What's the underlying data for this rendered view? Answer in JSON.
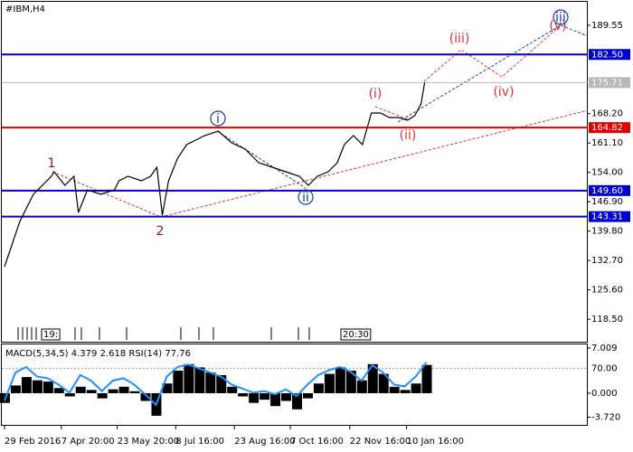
{
  "chart_data": [
    {
      "type": "line",
      "title": "#IBM,H4",
      "color": "#000000",
      "x": [
        3,
        20,
        35,
        55,
        58,
        70,
        80,
        85,
        95,
        110,
        125,
        130,
        140,
        155,
        165,
        172,
        178,
        185,
        195,
        205,
        215,
        225,
        240,
        255,
        270,
        285,
        300,
        315,
        330,
        340,
        350,
        362,
        372,
        380,
        390,
        400,
        410,
        420,
        430,
        440,
        450,
        458,
        465,
        469
      ],
      "values": [
        131.21,
        142.14,
        148.69,
        153.06,
        154.15,
        150.88,
        153.06,
        144.32,
        149.78,
        148.69,
        149.78,
        151.97,
        153.06,
        151.97,
        153.06,
        155.25,
        143.66,
        151.97,
        157.43,
        160.71,
        161.8,
        162.89,
        163.99,
        161.14,
        159.62,
        156.34,
        155.25,
        154.15,
        153.06,
        150.88,
        153.06,
        154.15,
        156.34,
        160.71,
        162.89,
        160.71,
        168.36,
        168.36,
        167.26,
        167.26,
        166.61,
        167.7,
        170.54,
        175.71
      ],
      "xlim": [
        0,
        650
      ],
      "ylim": [
        113.07,
        195.23
      ],
      "yticks": [
        {
          "value": 189.55,
          "label": "189.55"
        },
        {
          "value": 168.2,
          "label": "168.20"
        },
        {
          "value": 161.1,
          "label": "161.10"
        },
        {
          "value": 154,
          "label": "154.00"
        },
        {
          "value": 146.9,
          "label": "146.90"
        },
        {
          "value": 139.8,
          "label": "139.80"
        },
        {
          "value": 132.7,
          "label": "132.70"
        },
        {
          "value": 125.6,
          "label": "125.60"
        },
        {
          "value": 118.5,
          "label": "118.50"
        }
      ],
      "levels": [
        {
          "value": 182.5,
          "label": "182.50",
          "color": "#0000cd"
        },
        {
          "value": 175.71,
          "label": "175.71",
          "color": "#b8b8b8"
        },
        {
          "value": 164.82,
          "label": "164.82",
          "color": "#e00000"
        },
        {
          "value": 149.6,
          "label": "149.60",
          "color": "#0000cd"
        },
        {
          "value": 143.31,
          "label": "143.31",
          "color": "#0000cd"
        }
      ],
      "xticks": [
        {
          "value": 3,
          "label": "29 Feb 2016"
        },
        {
          "value": 66,
          "label": "7 Apr 20:00"
        },
        {
          "value": 128,
          "label": "23 May 20:00"
        },
        {
          "value": 193,
          "label": "8 Jul 16:00"
        },
        {
          "value": 258,
          "label": "23 Aug 16:00"
        },
        {
          "value": 320,
          "label": "7 Oct 16:00"
        },
        {
          "value": 386,
          "label": "22 Nov 16:00"
        },
        {
          "value": 449,
          "label": "10 Jan 16:00"
        }
      ],
      "separators": [
        "19:",
        "20:30"
      ],
      "annotations": [
        {
          "text": "1",
          "color": "#8b1a1a",
          "circled": false
        },
        {
          "text": "2",
          "color": "#8b1a1a",
          "circled": false
        },
        {
          "text": "i",
          "color": "#1a3aa0",
          "circled": true
        },
        {
          "text": "ii",
          "color": "#1a3aa0",
          "circled": true
        },
        {
          "text": "(i)",
          "color": "#e03030",
          "circled": false
        },
        {
          "text": "(ii)",
          "color": "#e03030",
          "circled": false
        },
        {
          "text": "(iii)",
          "color": "#e03030",
          "circled": false
        },
        {
          "text": "(iv)",
          "color": "#e03030",
          "circled": false
        },
        {
          "text": "(v)",
          "color": "#e03030",
          "circled": false
        },
        {
          "text": "iii",
          "color": "#1a3aa0",
          "circled": true
        }
      ]
    },
    {
      "type": "indicator",
      "header": "MACD(5,34,5) 4.379 2.618 RSI(14) 77.76",
      "x": [
        3,
        15,
        27,
        39,
        51,
        63,
        75,
        87,
        99,
        111,
        123,
        135,
        147,
        159,
        171,
        183,
        195,
        207,
        219,
        231,
        243,
        255,
        267,
        279,
        291,
        303,
        315,
        327,
        339,
        351,
        363,
        375,
        387,
        399,
        411,
        423,
        435,
        447,
        459,
        471
      ],
      "xlim": [
        0,
        650
      ],
      "ylim": [
        -4.91,
        7.56
      ],
      "y2lim": [
        0,
        100
      ],
      "yticks": [
        {
          "value": 7.009,
          "label": "7.009"
        },
        {
          "value": 0,
          "label": "0.000"
        },
        {
          "value": -3.72,
          "label": "-3.720"
        }
      ],
      "y2ticks": [
        {
          "value": 70,
          "label": "70.00"
        }
      ],
      "series": [
        {
          "color": "#000000",
          "values": [
            -1.5,
            1.2,
            2.5,
            2.0,
            1.8,
            0.8,
            -0.5,
            1.0,
            0.5,
            -0.8,
            0.6,
            1.0,
            0.3,
            -1.2,
            -3.5,
            1.5,
            3.5,
            4.5,
            4.0,
            3.2,
            2.8,
            1.0,
            -0.5,
            -1.5,
            -1.0,
            -2.0,
            -1.2,
            -2.5,
            -0.8,
            1.5,
            3.0,
            4.0,
            3.5,
            2.0,
            4.5,
            3.0,
            1.0,
            0.5,
            1.5,
            4.379
          ]
        },
        {
          "color": "#1e90ff",
          "axis": "y2",
          "values": [
            30,
            65,
            72,
            60,
            58,
            50,
            40,
            62,
            55,
            42,
            55,
            58,
            50,
            38,
            25,
            60,
            72,
            75,
            70,
            65,
            60,
            50,
            45,
            40,
            42,
            38,
            44,
            36,
            50,
            62,
            68,
            72,
            66,
            55,
            74,
            65,
            50,
            48,
            60,
            77.76
          ]
        }
      ]
    }
  ]
}
